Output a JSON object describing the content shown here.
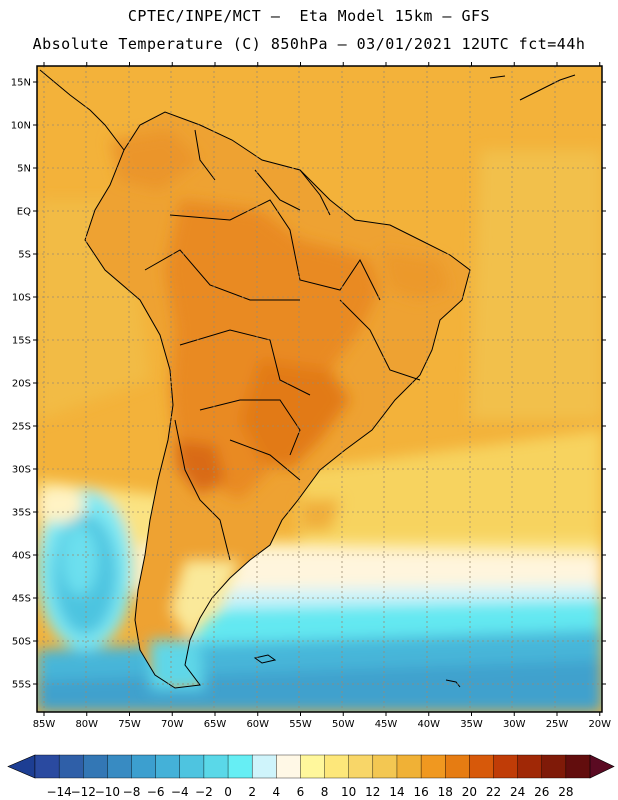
{
  "header": {
    "line1": "CPTEC/INPE/MCT –  Eta Model 15km – GFS",
    "line2": "Absolute Temperature (C) 850hPa – 03/01/2021 12UTC fct=44h"
  },
  "map": {
    "lat_ticks": [
      "15N",
      "10N",
      "5N",
      "EQ",
      "5S",
      "10S",
      "15S",
      "20S",
      "25S",
      "30S",
      "35S",
      "40S",
      "45S",
      "50S",
      "55S"
    ],
    "lon_ticks": [
      "85W",
      "80W",
      "75W",
      "70W",
      "65W",
      "60W",
      "55W",
      "50W",
      "45W",
      "40W",
      "35W",
      "30W",
      "25W",
      "20W"
    ]
  },
  "colorbar": {
    "labels": [
      "−14",
      "−12",
      "−10",
      "−8",
      "−6",
      "−4",
      "−2",
      "0",
      "2",
      "4",
      "6",
      "8",
      "10",
      "12",
      "14",
      "16",
      "18",
      "20",
      "22",
      "24",
      "26",
      "28"
    ],
    "colors": [
      "#2a4aa0",
      "#2f5fa8",
      "#3377b5",
      "#388bc2",
      "#3c9fcf",
      "#44b1d8",
      "#4ec4e0",
      "#5ad8e8",
      "#66eef4",
      "#cff4fb",
      "#fff8e6",
      "#fff79c",
      "#fde77a",
      "#f8d668",
      "#f3c752",
      "#f0b136",
      "#f09820",
      "#e67c12",
      "#d7590a",
      "#c03c07",
      "#a02806",
      "#7f1a08",
      "#620d0d"
    ],
    "left_arrow_color": "#1d3e93",
    "right_arrow_color": "#5a0a22"
  }
}
